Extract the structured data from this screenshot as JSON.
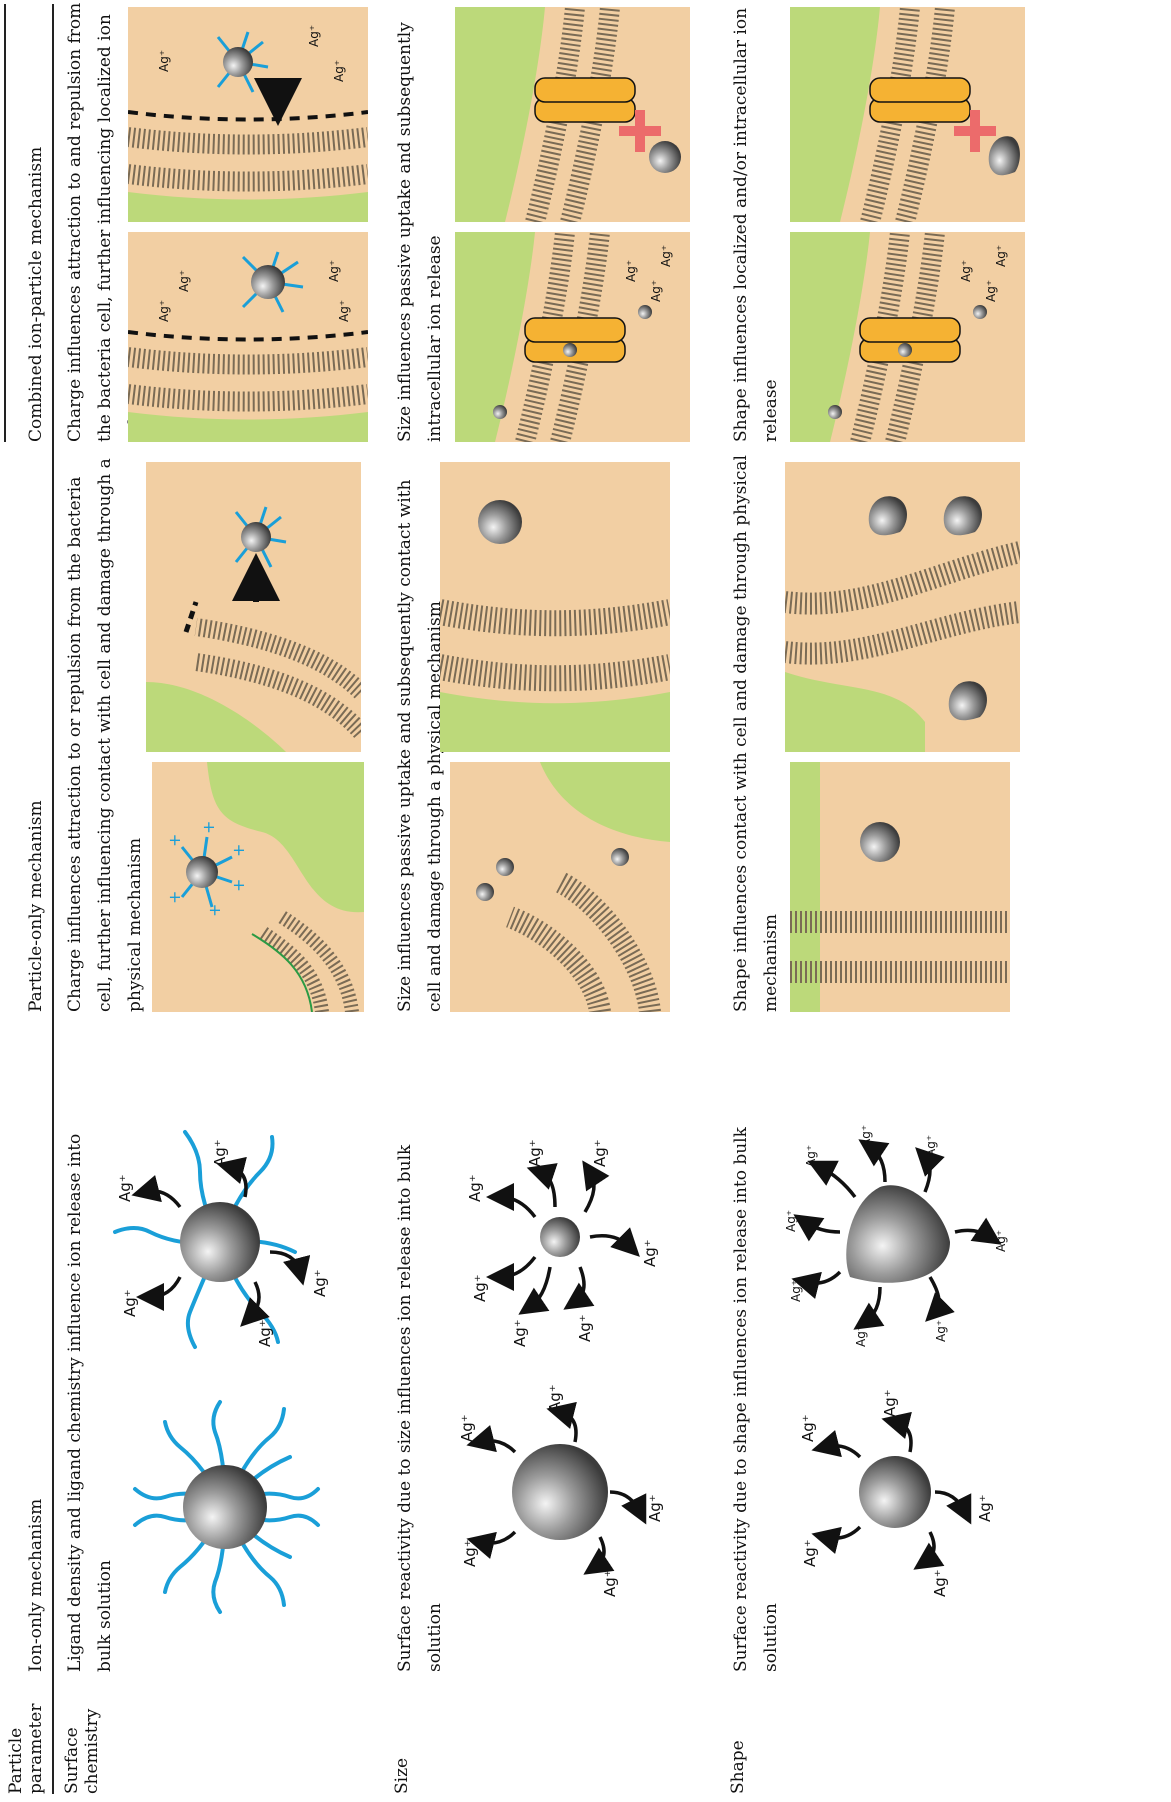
{
  "headers": {
    "param_line1": "Particle",
    "param_line2": "parameter",
    "ion_only": "Ion-only mechanism",
    "particle_only": "Particle-only mechanism",
    "combined": "Combined ion-particle mechanism"
  },
  "rows": [
    {
      "label_line1": "Surface",
      "label_line2": "chemistry",
      "ion_caption": "Ligand density and ligand chemistry influence ion release into bulk solution",
      "particle_caption": "Charge influences attraction to or repulsion from the bacteria cell, further influencing contact with cell and damage through a physical mechanism",
      "combined_caption": "Charge influences attraction to and repulsion from the bacteria cell, further influencing localized ion release"
    },
    {
      "label_line1": "Size",
      "label_line2": "",
      "ion_caption": "Surface reactivity due to size influences ion release into bulk solution",
      "particle_caption": "Size influences passive uptake and subsequently contact with cell and damage through a physical mechanism",
      "combined_caption": "Size influences passive uptake and subsequently intracellular ion release"
    },
    {
      "label_line1": "Shape",
      "label_line2": "",
      "ion_caption": "Surface reactivity due to shape influences ion release into bulk solution",
      "particle_caption": "Shape influences contact with cell and damage through physical mechanism",
      "combined_caption": "Shape influences localized and/or intracellular ion release"
    }
  ],
  "ion_label": "Ag⁺",
  "colors": {
    "ligand": "#1a9fd8",
    "cell": "#bcd97a",
    "medium": "#f2cfa3",
    "channel": "#f5b233",
    "blocked": "#ec6b6b",
    "lipid_head": "#e8b420",
    "membrane_line": "#2b9a44"
  }
}
